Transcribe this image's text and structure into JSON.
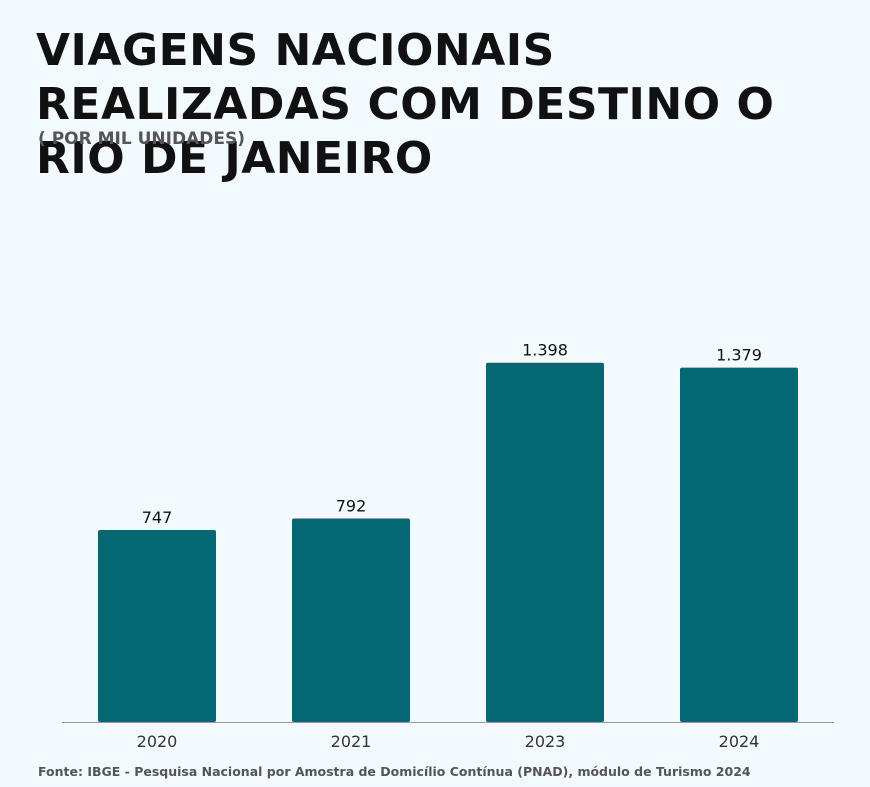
{
  "header": {
    "title": "VIAGENS NACIONAIS REALIZADAS COM DESTINO O RIO DE JANEIRO",
    "subtitle": "( POR MIL UNIDADES)"
  },
  "footer": {
    "source": "Fonte: IBGE - Pesquisa Nacional por Amostra de Domicílio Contínua (PNAD), módulo de Turismo 2024"
  },
  "colors": {
    "bar": "#046872",
    "axis": "#999999",
    "label": "#111111",
    "tick": "#333333"
  },
  "chart_data": {
    "type": "bar",
    "title": "VIAGENS NACIONAIS REALIZADAS COM DESTINO O RIO DE JANEIRO",
    "subtitle": "( POR MIL UNIDADES)",
    "categories": [
      "2020",
      "2021",
      "2023",
      "2024"
    ],
    "values": [
      747,
      792,
      1398,
      1379
    ],
    "value_labels": [
      "747",
      "792",
      "1.398",
      "1.379"
    ],
    "xlabel": "",
    "ylabel": "",
    "ylim": [
      0,
      1500
    ],
    "grid": false,
    "legend": "none"
  }
}
